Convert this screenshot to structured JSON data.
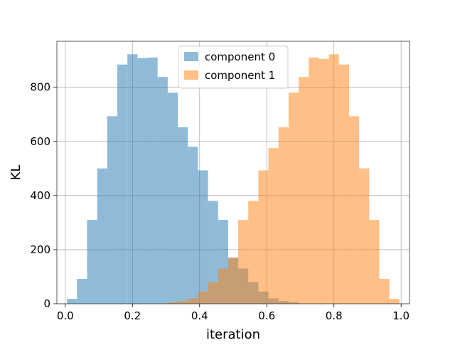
{
  "chart_data": {
    "type": "histogram",
    "xlabel": "iteration",
    "ylabel": "KL",
    "xlim": [
      -0.025,
      1.025
    ],
    "ylim": [
      0,
      970
    ],
    "x_ticks": [
      "0.0",
      "0.2",
      "0.4",
      "0.6",
      "0.8",
      "1.0"
    ],
    "y_ticks": [
      "0",
      "200",
      "400",
      "600",
      "800"
    ],
    "grid": true,
    "legend_position": "top-center",
    "bin_width": 0.03,
    "series": [
      {
        "name": "component 0",
        "color": "#1f77b4",
        "alpha": 0.5,
        "bins": [
          [
            0.02,
            18
          ],
          [
            0.05,
            92
          ],
          [
            0.08,
            310
          ],
          [
            0.11,
            500
          ],
          [
            0.14,
            693
          ],
          [
            0.17,
            884
          ],
          [
            0.2,
            922
          ],
          [
            0.23,
            908
          ],
          [
            0.26,
            910
          ],
          [
            0.29,
            838
          ],
          [
            0.32,
            780
          ],
          [
            0.35,
            652
          ],
          [
            0.38,
            580
          ],
          [
            0.41,
            493
          ],
          [
            0.44,
            380
          ],
          [
            0.47,
            310
          ],
          [
            0.5,
            170
          ],
          [
            0.53,
            130
          ],
          [
            0.56,
            80
          ],
          [
            0.59,
            45
          ],
          [
            0.62,
            20
          ],
          [
            0.65,
            10
          ],
          [
            0.68,
            5
          ]
        ]
      },
      {
        "name": "component 1",
        "color": "#ff7f0e",
        "alpha": 0.5,
        "bins": [
          [
            0.32,
            5
          ],
          [
            0.35,
            10
          ],
          [
            0.38,
            20
          ],
          [
            0.41,
            45
          ],
          [
            0.44,
            80
          ],
          [
            0.47,
            130
          ],
          [
            0.5,
            170
          ],
          [
            0.53,
            310
          ],
          [
            0.56,
            380
          ],
          [
            0.59,
            493
          ],
          [
            0.62,
            575
          ],
          [
            0.65,
            652
          ],
          [
            0.68,
            780
          ],
          [
            0.71,
            838
          ],
          [
            0.74,
            910
          ],
          [
            0.77,
            905
          ],
          [
            0.8,
            922
          ],
          [
            0.83,
            884
          ],
          [
            0.86,
            693
          ],
          [
            0.89,
            500
          ],
          [
            0.92,
            310
          ],
          [
            0.95,
            92
          ],
          [
            0.98,
            18
          ]
        ]
      }
    ]
  }
}
